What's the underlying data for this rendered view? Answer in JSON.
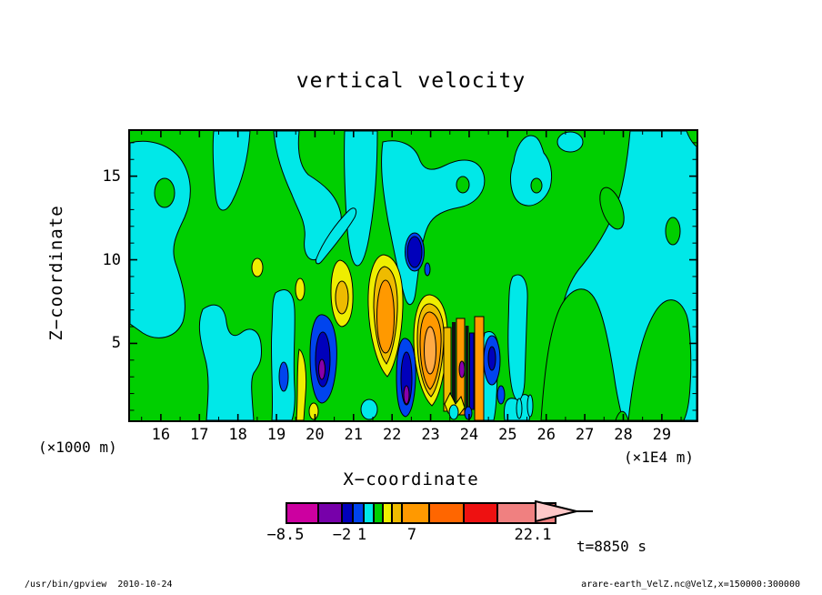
{
  "title": "vertical velocity",
  "plot": {
    "x_axis": {
      "label": "X−coordinate",
      "unit_label": "(×1E4 m)",
      "tick_values": [
        16,
        17,
        18,
        19,
        20,
        21,
        22,
        23,
        24,
        25,
        26,
        27,
        28,
        29
      ],
      "tick_labels": [
        "16",
        "17",
        "18",
        "19",
        "20",
        "21",
        "22",
        "23",
        "24",
        "25",
        "26",
        "27",
        "28",
        "29"
      ],
      "minor_step": 0.5,
      "range": [
        15.2,
        29.9
      ]
    },
    "y_axis": {
      "label": "Z−coordinate",
      "unit_label": "(×1000 m)",
      "tick_values": [
        5,
        10,
        15
      ],
      "tick_labels": [
        "5",
        "10",
        "15"
      ],
      "minor_step": 1,
      "range": [
        0.4,
        17.7
      ]
    }
  },
  "colorbar": {
    "colors": [
      "#CC00A0",
      "#7700AA",
      "#0000BB",
      "#0044EE",
      "#00E8E8",
      "#00CF00",
      "#EEEE00",
      "#EEBB00",
      "#FF9900",
      "#FF6600",
      "#EE1111",
      "#F08080",
      "#FFC8C8"
    ],
    "tick_labels": [
      "−8.5",
      "−2",
      "1",
      "7",
      "22.1"
    ]
  },
  "time_label": "t=8850 s",
  "footer": {
    "left": "/usr/bin/gpview  2010-10-24",
    "right": "arare-earth_VelZ.nc@VelZ,x=150000:300000"
  },
  "chart_data": {
    "type": "filled_contour",
    "title": "vertical velocity",
    "xlabel": "X−coordinate (×1E4 m)",
    "ylabel": "Z−coordinate (×1000 m)",
    "x_range": [
      15.2,
      29.9
    ],
    "z_range": [
      0.4,
      17.7
    ],
    "x_ticks": [
      16,
      17,
      18,
      19,
      20,
      21,
      22,
      23,
      24,
      25,
      26,
      27,
      28,
      29
    ],
    "z_ticks": [
      5,
      10,
      15
    ],
    "time": "t=8850 s",
    "colorbar_labeled_levels": [
      -8.5,
      -2,
      1,
      7,
      22.1
    ],
    "palette": [
      "#CC00A0",
      "#7700AA",
      "#0000BB",
      "#0044EE",
      "#00E8E8",
      "#00CF00",
      "#EEEE00",
      "#EEBB00",
      "#FF9900",
      "#FF6600",
      "#EE1111",
      "#F08080",
      "#FFC8C8"
    ],
    "grid_x": [
      15.5,
      16.5,
      17.5,
      18.5,
      19.5,
      20.5,
      21.5,
      22.5,
      23.5,
      24.5,
      25.5,
      26.5,
      27.5,
      28.5,
      29.5
    ],
    "grid_z": [
      17,
      15,
      13,
      11,
      9,
      7,
      5,
      3,
      1
    ],
    "values_approx": [
      [
        -1,
        2,
        2,
        2,
        -1,
        2,
        -1,
        -1,
        2,
        2,
        2,
        2,
        2,
        -1,
        2
      ],
      [
        -1,
        2,
        2,
        2,
        2,
        -1,
        -1,
        -1,
        2,
        2,
        2,
        2,
        -1,
        2,
        2
      ],
      [
        -1,
        -1,
        2,
        2,
        2,
        -1,
        -1,
        2,
        2,
        2,
        2,
        2,
        2,
        -1,
        -1
      ],
      [
        2,
        -1,
        2,
        2,
        2,
        -1,
        -1,
        -3,
        2,
        2,
        2,
        2,
        -1,
        -1,
        -1
      ],
      [
        2,
        2,
        2,
        -1,
        2,
        5,
        8,
        2,
        -1,
        2,
        2,
        -1,
        -1,
        -1,
        -1
      ],
      [
        -1,
        2,
        2,
        2,
        2,
        5,
        8,
        8,
        -1,
        2,
        -1,
        -1,
        -1,
        -1,
        -1
      ],
      [
        2,
        2,
        2,
        -1,
        2,
        -3,
        8,
        12,
        5,
        2,
        -1,
        2,
        -1,
        -1,
        2
      ],
      [
        2,
        2,
        2,
        -1,
        -1,
        -6,
        5,
        12,
        -3,
        2,
        -1,
        2,
        2,
        -1,
        2
      ],
      [
        2,
        2,
        2,
        2,
        -1,
        5,
        -3,
        8,
        -6,
        2,
        -1,
        2,
        2,
        2,
        -1
      ]
    ],
    "notes": "Filled contour x-z section; green ~ weakly positive, cyan ~ weakly negative, yellow/orange updraft cores near x=20-24 below z=9, blue/purple downdraft cores adjacent; values_approx is a coarse qualitative read of the field."
  }
}
